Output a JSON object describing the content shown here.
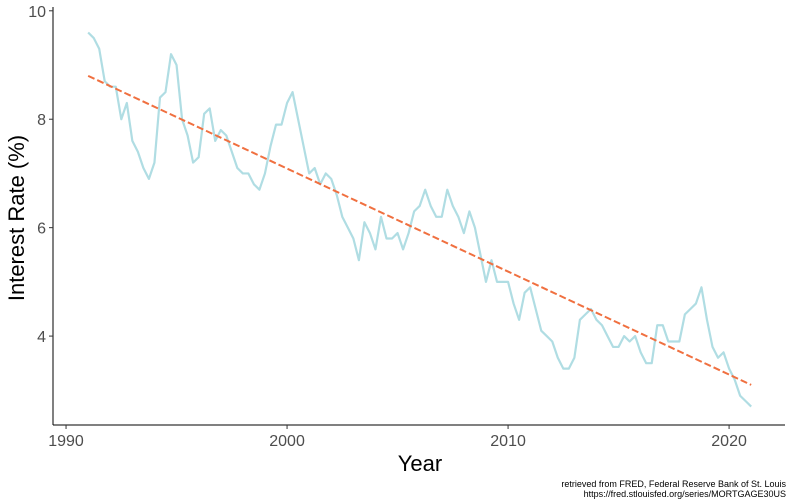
{
  "chart_data": {
    "type": "line",
    "x_label": "Year",
    "y_label": "Interest Rate (%)",
    "caption": [
      "retrieved from FRED, Federal Reserve Bank of St. Louis",
      "https://fred.stlouisfed.org/series/MORTGAGE30US"
    ],
    "xlim": [
      1989.41,
      2022.53
    ],
    "ylim": [
      2.36,
      10.07
    ],
    "xticks": [
      1990,
      2000,
      2010,
      2020
    ],
    "yticks": [
      4,
      6,
      8,
      10
    ],
    "grid": false,
    "series": [
      {
        "color": "#b0dde3",
        "dashed": false,
        "x": [
          1991.0,
          1991.25,
          1991.5,
          1991.75,
          1992.0,
          1992.25,
          1992.5,
          1992.75,
          1993.0,
          1993.25,
          1993.5,
          1993.75,
          1994.0,
          1994.25,
          1994.5,
          1994.75,
          1995.0,
          1995.25,
          1995.5,
          1995.75,
          1996.0,
          1996.25,
          1996.5,
          1996.75,
          1997.0,
          1997.25,
          1997.5,
          1997.75,
          1998.0,
          1998.25,
          1998.5,
          1998.75,
          1999.0,
          1999.25,
          1999.5,
          1999.75,
          2000.0,
          2000.25,
          2000.5,
          2000.75,
          2001.0,
          2001.25,
          2001.5,
          2001.75,
          2002.0,
          2002.25,
          2002.5,
          2002.75,
          2003.0,
          2003.25,
          2003.5,
          2003.75,
          2004.0,
          2004.25,
          2004.5,
          2004.75,
          2005.0,
          2005.25,
          2005.5,
          2005.75,
          2006.0,
          2006.25,
          2006.5,
          2006.75,
          2007.0,
          2007.25,
          2007.5,
          2007.75,
          2008.0,
          2008.25,
          2008.5,
          2008.75,
          2009.0,
          2009.25,
          2009.5,
          2009.75,
          2010.0,
          2010.25,
          2010.5,
          2010.75,
          2011.0,
          2011.25,
          2011.5,
          2011.75,
          2012.0,
          2012.25,
          2012.5,
          2012.75,
          2013.0,
          2013.25,
          2013.5,
          2013.75,
          2014.0,
          2014.25,
          2014.5,
          2014.75,
          2015.0,
          2015.25,
          2015.5,
          2015.75,
          2016.0,
          2016.25,
          2016.5,
          2016.75,
          2017.0,
          2017.25,
          2017.5,
          2017.75,
          2018.0,
          2018.25,
          2018.5,
          2018.75,
          2019.0,
          2019.25,
          2019.5,
          2019.75,
          2020.0,
          2020.25,
          2020.5,
          2020.75,
          2021.0
        ],
        "values": [
          9.6,
          9.5,
          9.3,
          8.7,
          8.6,
          8.6,
          8.0,
          8.3,
          7.6,
          7.4,
          7.1,
          6.9,
          7.2,
          8.4,
          8.5,
          9.2,
          9.0,
          8.0,
          7.7,
          7.2,
          7.3,
          8.1,
          8.2,
          7.6,
          7.8,
          7.7,
          7.4,
          7.1,
          7.0,
          7.0,
          6.8,
          6.7,
          7.0,
          7.5,
          7.9,
          7.9,
          8.3,
          8.5,
          8.0,
          7.5,
          7.0,
          7.1,
          6.8,
          7.0,
          6.9,
          6.6,
          6.2,
          6.0,
          5.8,
          5.4,
          6.1,
          5.9,
          5.6,
          6.2,
          5.8,
          5.8,
          5.9,
          5.6,
          5.9,
          6.3,
          6.4,
          6.7,
          6.4,
          6.2,
          6.2,
          6.7,
          6.4,
          6.2,
          5.9,
          6.3,
          6.0,
          5.5,
          5.0,
          5.4,
          5.0,
          5.0,
          5.0,
          4.6,
          4.3,
          4.8,
          4.9,
          4.5,
          4.1,
          4.0,
          3.9,
          3.6,
          3.4,
          3.4,
          3.6,
          4.3,
          4.4,
          4.5,
          4.3,
          4.2,
          4.0,
          3.8,
          3.8,
          4.0,
          3.9,
          4.0,
          3.7,
          3.5,
          3.5,
          4.2,
          4.2,
          3.9,
          3.9,
          3.9,
          4.4,
          4.5,
          4.6,
          4.9,
          4.3,
          3.8,
          3.6,
          3.7,
          3.4,
          3.2,
          2.9,
          2.8,
          2.7
        ]
      },
      {
        "color": "#f07040",
        "dashed": true,
        "x": [
          1991.0,
          2021.0
        ],
        "values": [
          8.8,
          3.1
        ]
      }
    ]
  }
}
